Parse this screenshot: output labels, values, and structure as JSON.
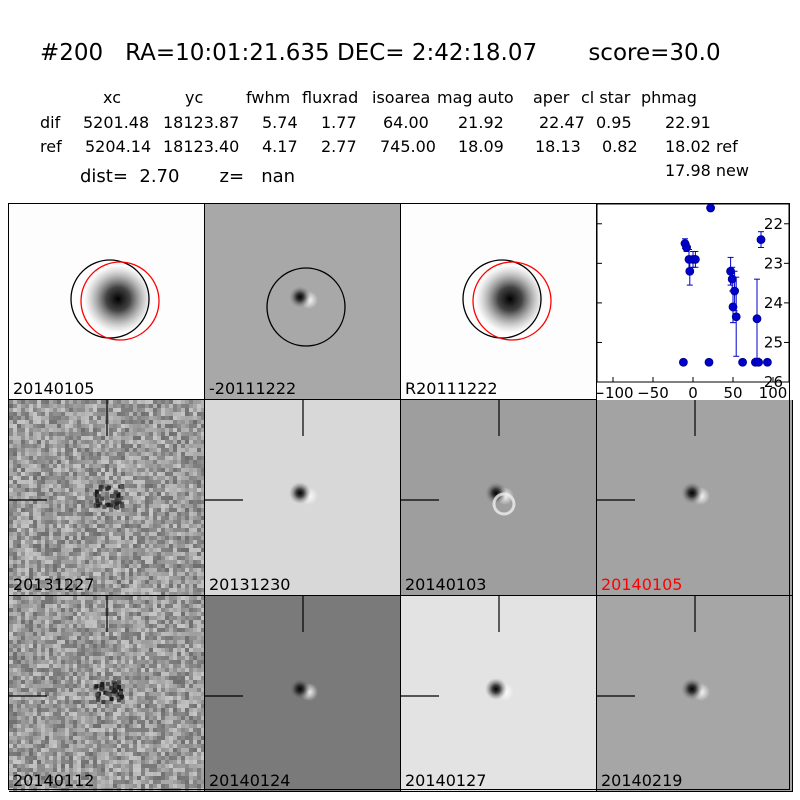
{
  "title": {
    "id": "#200",
    "ra": "RA=10:01:21.635",
    "dec": "DEC= 2:42:18.07",
    "score": "score=30.0"
  },
  "table": {
    "headers": [
      "xc",
      "yc",
      "fwhm",
      "fluxrad",
      "isoarea",
      "mag auto",
      "aper",
      "cl star",
      "phmag"
    ],
    "rows": [
      {
        "label": "dif",
        "values": [
          "5201.48",
          "18123.87",
          "5.74",
          "1.77",
          "64.00",
          "21.92",
          "22.47",
          "0.95",
          "22.91"
        ],
        "suffix": ""
      },
      {
        "label": "ref",
        "values": [
          "5204.14",
          "18123.40",
          "4.17",
          "2.77",
          "745.00",
          "18.09",
          "18.13",
          "0.82",
          "18.02"
        ],
        "suffix": "ref"
      }
    ],
    "dist_text": "dist=  2.70",
    "z_text": "z=   nan",
    "new_value": "17.98",
    "new_suffix": "new"
  },
  "panels": [
    {
      "label": "20140105",
      "label_color": "#000000",
      "bg": "#fdfdfd",
      "kind": "star-circles"
    },
    {
      "label": "-20111222",
      "label_color": "#000000",
      "bg": "#a8a8a8",
      "kind": "dipole-circle"
    },
    {
      "label": "R20111222",
      "label_color": "#000000",
      "bg": "#fdfdfd",
      "kind": "star-circles"
    },
    {
      "label": "20131227",
      "label_color": "#000000",
      "bg": "#9a9a9a",
      "kind": "noisy"
    },
    {
      "label": "20131230",
      "label_color": "#000000",
      "bg": "#d8d8d8",
      "kind": "dipole"
    },
    {
      "label": "20140103",
      "label_color": "#000000",
      "bg": "#9e9e9e",
      "kind": "dipole-ring"
    },
    {
      "label": "20140105",
      "label_color": "#ff0000",
      "bg": "#a3a3a3",
      "kind": "dipole"
    },
    {
      "label": "20140112",
      "label_color": "#000000",
      "bg": "#b2b2b2",
      "kind": "noisy"
    },
    {
      "label": "20140124",
      "label_color": "#000000",
      "bg": "#7a7a7a",
      "kind": "dipole"
    },
    {
      "label": "20140127",
      "label_color": "#000000",
      "bg": "#e3e3e3",
      "kind": "dipole"
    },
    {
      "label": "20140219",
      "label_color": "#000000",
      "bg": "#a6a6a6",
      "kind": "dipole"
    }
  ],
  "chart_data": {
    "type": "scatter",
    "xlim": [
      -120,
      120
    ],
    "ylim": [
      26,
      21.5
    ],
    "y_inverted": true,
    "xticks": [
      -100,
      -50,
      0,
      50,
      100
    ],
    "xtick_labels": [
      "−100",
      "−50",
      "0",
      "50",
      "100"
    ],
    "yticks": [
      22,
      23,
      24,
      25,
      26
    ],
    "marker_color": "#0000cc",
    "points": [
      {
        "x": -12,
        "y": 25.5,
        "err": 0
      },
      {
        "x": -10,
        "y": 22.5,
        "err": 0.12
      },
      {
        "x": -8,
        "y": 22.6,
        "err": 0.1
      },
      {
        "x": -5,
        "y": 22.9,
        "err": 0.25
      },
      {
        "x": -4,
        "y": 23.2,
        "err": 0.35
      },
      {
        "x": 0,
        "y": 22.9,
        "err": 0.2
      },
      {
        "x": 3,
        "y": 22.9,
        "err": 0.2
      },
      {
        "x": 20,
        "y": 25.5,
        "err": 0
      },
      {
        "x": 22,
        "y": 21.6,
        "err": 0.05
      },
      {
        "x": 47,
        "y": 23.2,
        "err": 0.35
      },
      {
        "x": 49,
        "y": 23.4,
        "err": 0.3
      },
      {
        "x": 50,
        "y": 24.1,
        "err": 0.4
      },
      {
        "x": 52,
        "y": 23.7,
        "err": 0.5
      },
      {
        "x": 54,
        "y": 24.35,
        "err": 1.0
      },
      {
        "x": 62,
        "y": 25.5,
        "err": 0
      },
      {
        "x": 78,
        "y": 25.5,
        "err": 0
      },
      {
        "x": 80,
        "y": 24.4,
        "err": 1.0
      },
      {
        "x": 82,
        "y": 25.5,
        "err": 0
      },
      {
        "x": 85,
        "y": 22.4,
        "err": 0.2
      },
      {
        "x": 93,
        "y": 25.5,
        "err": 0
      }
    ]
  }
}
